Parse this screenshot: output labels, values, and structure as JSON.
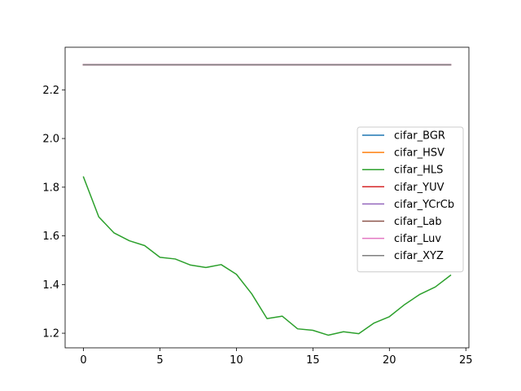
{
  "chart_data": {
    "type": "line",
    "title": "",
    "xlabel": "",
    "ylabel": "",
    "xlim": [
      -1.2,
      25.2
    ],
    "ylim": [
      1.14,
      2.375
    ],
    "xticks": [
      0,
      5,
      10,
      15,
      20,
      25
    ],
    "yticks": [
      1.2,
      1.4,
      1.6,
      1.8,
      2.0,
      2.2
    ],
    "grid": false,
    "legend_position": "center-right",
    "x": [
      0,
      1,
      2,
      3,
      4,
      5,
      6,
      7,
      8,
      9,
      10,
      11,
      12,
      13,
      14,
      15,
      16,
      17,
      18,
      19,
      20,
      21,
      22,
      23,
      24
    ],
    "series": [
      {
        "name": "cifar_BGR",
        "color": "#1f77b4",
        "values": [
          2.303,
          2.303,
          2.303,
          2.303,
          2.303,
          2.303,
          2.303,
          2.303,
          2.303,
          2.303,
          2.303,
          2.303,
          2.303,
          2.303,
          2.303,
          2.303,
          2.303,
          2.303,
          2.303,
          2.303,
          2.303,
          2.303,
          2.303,
          2.303,
          2.303
        ]
      },
      {
        "name": "cifar_HSV",
        "color": "#ff7f0e",
        "values": [
          2.303,
          2.303,
          2.303,
          2.303,
          2.303,
          2.303,
          2.303,
          2.303,
          2.303,
          2.303,
          2.303,
          2.303,
          2.303,
          2.303,
          2.303,
          2.303,
          2.303,
          2.303,
          2.303,
          2.303,
          2.303,
          2.303,
          2.303,
          2.303,
          2.303
        ]
      },
      {
        "name": "cifar_HLS",
        "color": "#2ca02c",
        "values": [
          1.842,
          1.678,
          1.612,
          1.58,
          1.56,
          1.512,
          1.505,
          1.48,
          1.47,
          1.482,
          1.442,
          1.362,
          1.26,
          1.27,
          1.218,
          1.212,
          1.192,
          1.206,
          1.198,
          1.242,
          1.268,
          1.318,
          1.36,
          1.39,
          1.438
        ]
      },
      {
        "name": "cifar_YUV",
        "color": "#d62728",
        "values": [
          2.303,
          2.303,
          2.303,
          2.303,
          2.303,
          2.303,
          2.303,
          2.303,
          2.303,
          2.303,
          2.303,
          2.303,
          2.303,
          2.303,
          2.303,
          2.303,
          2.303,
          2.303,
          2.303,
          2.303,
          2.303,
          2.303,
          2.303,
          2.303,
          2.303
        ]
      },
      {
        "name": "cifar_YCrCb",
        "color": "#9467bd",
        "values": [
          2.303,
          2.303,
          2.303,
          2.303,
          2.303,
          2.303,
          2.303,
          2.303,
          2.303,
          2.303,
          2.303,
          2.303,
          2.303,
          2.303,
          2.303,
          2.303,
          2.303,
          2.303,
          2.303,
          2.303,
          2.303,
          2.303,
          2.303,
          2.303,
          2.303
        ]
      },
      {
        "name": "cifar_Lab",
        "color": "#8c564b",
        "values": [
          2.303,
          2.303,
          2.303,
          2.303,
          2.303,
          2.303,
          2.303,
          2.303,
          2.303,
          2.303,
          2.303,
          2.303,
          2.303,
          2.303,
          2.303,
          2.303,
          2.303,
          2.303,
          2.303,
          2.303,
          2.303,
          2.303,
          2.303,
          2.303,
          2.303
        ]
      },
      {
        "name": "cifar_Luv",
        "color": "#e377c2",
        "values": [
          2.303,
          2.303,
          2.303,
          2.303,
          2.303,
          2.303,
          2.303,
          2.303,
          2.303,
          2.303,
          2.303,
          2.303,
          2.303,
          2.303,
          2.303,
          2.303,
          2.303,
          2.303,
          2.303,
          2.303,
          2.303,
          2.303,
          2.303,
          2.303,
          2.303
        ]
      },
      {
        "name": "cifar_XYZ",
        "color": "#7f7f7f",
        "values": [
          2.303,
          2.303,
          2.303,
          2.303,
          2.303,
          2.303,
          2.303,
          2.303,
          2.303,
          2.303,
          2.303,
          2.303,
          2.303,
          2.303,
          2.303,
          2.303,
          2.303,
          2.303,
          2.303,
          2.303,
          2.303,
          2.303,
          2.303,
          2.303,
          2.303
        ]
      }
    ]
  }
}
